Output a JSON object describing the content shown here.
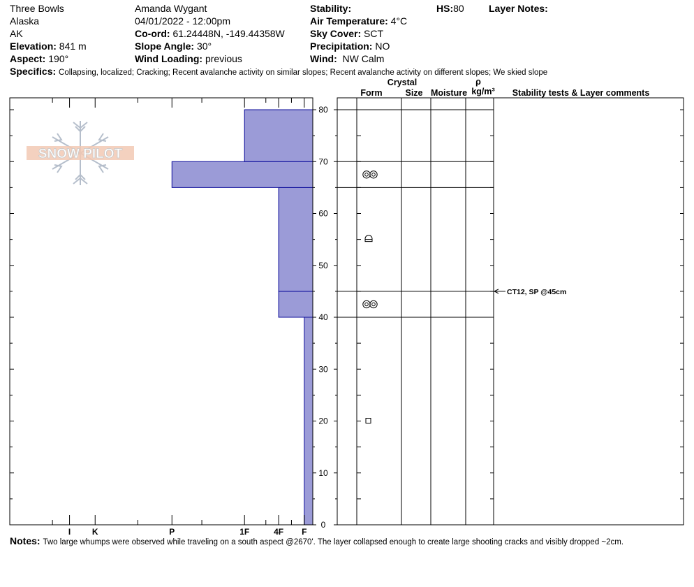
{
  "header": {
    "col1": [
      "Three Bowls",
      "Alaska",
      "AK"
    ],
    "elevation": {
      "label": "Elevation:",
      "value": "841 m"
    },
    "aspect": {
      "label": "Aspect:",
      "value": "190°"
    },
    "observer": "Amanda Wygant",
    "datetime": "04/01/2022 - 12:00pm",
    "coord": {
      "label": "Co-ord:",
      "value": "61.24448N, -149.44358W"
    },
    "slope": {
      "label": "Slope Angle:",
      "value": "30°"
    },
    "wind_loading": {
      "label": "Wind Loading:",
      "value": "previous"
    },
    "stability": {
      "label": "Stability:",
      "value": ""
    },
    "air_temp": {
      "label": "Air Temperature:",
      "value": "4°C"
    },
    "sky": {
      "label": "Sky Cover:",
      "value": "SCT"
    },
    "precip": {
      "label": "Precipitation:",
      "value": "NO"
    },
    "wind": {
      "label": "Wind:",
      "value": "NW Calm"
    },
    "hs": {
      "label": "HS:",
      "value": "80"
    },
    "layer_notes": {
      "label": "Layer Notes:"
    },
    "specifics": {
      "label": "Specifics:",
      "value": "Collapsing, localized;  Cracking;  Recent avalanche activity on similar slopes;  Recent avalanche activity on different slopes;  We skied slope"
    }
  },
  "logo": {
    "text": "SNOW PILOT"
  },
  "columns": {
    "crystal": "Crystal",
    "form": "Form",
    "size": "Size",
    "moisture": "Moisture",
    "rho": "ρ",
    "density_unit": "kg/m³",
    "stability": "Stability tests & Layer comments"
  },
  "chart_data": {
    "type": "bar",
    "subtype": "snow hardness profile",
    "ylim": [
      0,
      80
    ],
    "yticks": [
      0,
      10,
      20,
      30,
      40,
      50,
      60,
      70,
      80
    ],
    "hardness_ticks": [
      "I",
      "K",
      "P",
      "1F",
      "4F",
      "F"
    ],
    "hardness_tick_values": [
      8.6,
      8,
      6.2,
      4.5,
      3.7,
      3.1
    ],
    "hardness_range": [
      10,
      2.9
    ],
    "layers": [
      {
        "bottom": 0,
        "top": 40,
        "hardness": 3.1
      },
      {
        "bottom": 40,
        "top": 45,
        "hardness": 3.7
      },
      {
        "bottom": 45,
        "top": 65,
        "hardness": 3.7
      },
      {
        "bottom": 65,
        "top": 70,
        "hardness": 6.2
      },
      {
        "bottom": 70,
        "top": 80,
        "hardness": 4.5
      }
    ],
    "boundaries": [
      80,
      70,
      65,
      45,
      40
    ],
    "grain_symbols": [
      {
        "depth": 67.5,
        "symbol": "surface-hoar"
      },
      {
        "depth": 55,
        "symbol": "faceted-rounded"
      },
      {
        "depth": 42.5,
        "symbol": "surface-hoar"
      },
      {
        "depth": 20,
        "symbol": "faceted"
      }
    ],
    "test_annotations": [
      {
        "depth": 45,
        "text": "CT12, SP @45cm"
      }
    ],
    "colors": {
      "fill": "#9b9bd7",
      "stroke": "#0b0b9a"
    }
  },
  "notes": {
    "label": "Notes:",
    "value": "Two large whumps were observed while traveling on a south aspect @2670'. The layer collapsed enough to create large shooting cracks and visibly dropped ~2cm."
  }
}
